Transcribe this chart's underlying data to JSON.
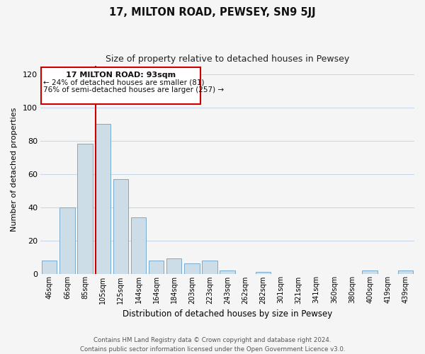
{
  "title": "17, MILTON ROAD, PEWSEY, SN9 5JJ",
  "subtitle": "Size of property relative to detached houses in Pewsey",
  "xlabel": "Distribution of detached houses by size in Pewsey",
  "ylabel": "Number of detached properties",
  "bar_labels": [
    "46sqm",
    "66sqm",
    "85sqm",
    "105sqm",
    "125sqm",
    "144sqm",
    "164sqm",
    "184sqm",
    "203sqm",
    "223sqm",
    "243sqm",
    "262sqm",
    "282sqm",
    "301sqm",
    "321sqm",
    "341sqm",
    "360sqm",
    "380sqm",
    "400sqm",
    "419sqm",
    "439sqm"
  ],
  "bar_values": [
    8,
    40,
    78,
    90,
    57,
    34,
    8,
    9,
    6,
    8,
    2,
    0,
    1,
    0,
    0,
    0,
    0,
    0,
    2,
    0,
    2
  ],
  "bar_color": "#ccdde8",
  "bar_edge_color": "#7aaacc",
  "ylim": [
    0,
    125
  ],
  "yticks": [
    0,
    20,
    40,
    60,
    80,
    100,
    120
  ],
  "marker_line_color": "#cc0000",
  "annotation_box_edge": "#cc0000",
  "annotation_line1": "17 MILTON ROAD: 93sqm",
  "annotation_line2": "← 24% of detached houses are smaller (81)",
  "annotation_line3": "76% of semi-detached houses are larger (257) →",
  "footer_line1": "Contains HM Land Registry data © Crown copyright and database right 2024.",
  "footer_line2": "Contains public sector information licensed under the Open Government Licence v3.0.",
  "background_color": "#f5f5f5",
  "grid_color": "#c8d8e8"
}
